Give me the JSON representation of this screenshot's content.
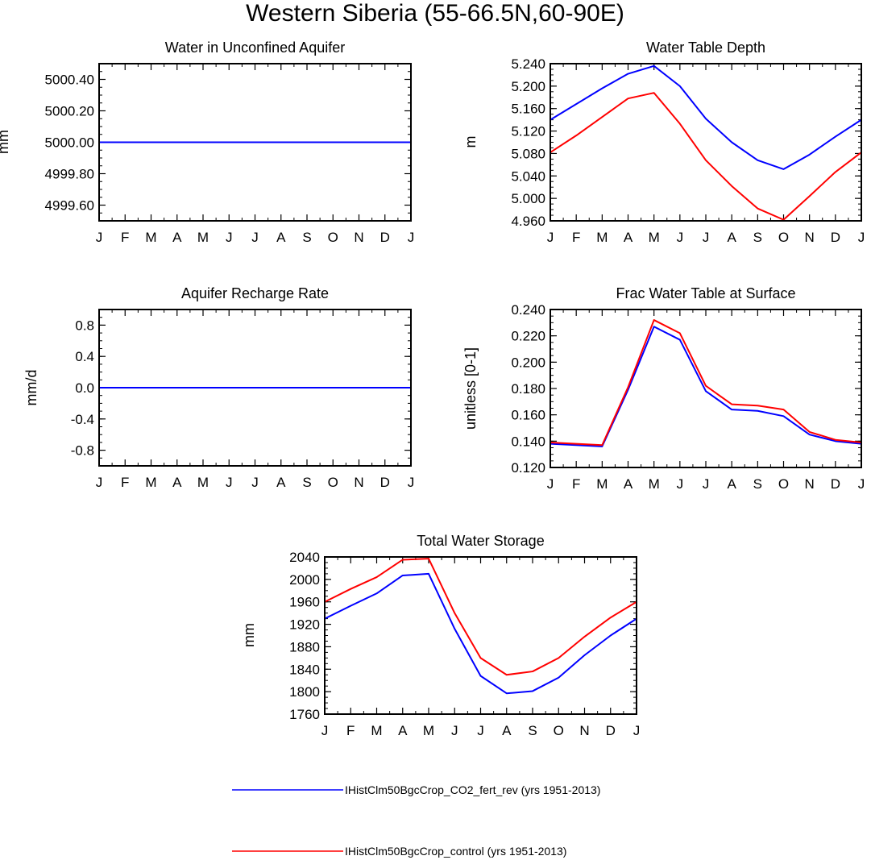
{
  "figure": {
    "title": "Western Siberia (55-66.5N,60-90E)",
    "month_labels": [
      "J",
      "F",
      "M",
      "A",
      "M",
      "J",
      "J",
      "A",
      "S",
      "O",
      "N",
      "D",
      "J"
    ],
    "legend": [
      {
        "label": "IHistClm50BgcCrop_CO2_fert_rev (yrs 1951-2013)",
        "color": "#0000ff"
      },
      {
        "label": "IHistClm50BgcCrop_control (yrs 1951-2013)",
        "color": "#ff0000"
      }
    ]
  },
  "colors": {
    "series_a": "#0000ff",
    "series_b": "#ff0000",
    "axis": "#000000"
  },
  "chart_data": [
    {
      "id": "aquifer",
      "type": "line",
      "title": "Water in Unconfined Aquifer",
      "ylabel": "mm",
      "categories": [
        "J",
        "F",
        "M",
        "A",
        "M",
        "J",
        "J",
        "A",
        "S",
        "O",
        "N",
        "D",
        "J"
      ],
      "ylim": [
        4999.5,
        5000.5
      ],
      "yticks": [
        4999.6,
        4999.8,
        5000.0,
        5000.2,
        5000.4
      ],
      "ytick_labels": [
        "4999.60",
        "4999.80",
        "5000.00",
        "5000.20",
        "5000.40"
      ],
      "series": [
        {
          "values": [
            5000,
            5000,
            5000,
            5000,
            5000,
            5000,
            5000,
            5000,
            5000,
            5000,
            5000,
            5000,
            5000
          ]
        },
        {
          "values": [
            5000,
            5000,
            5000,
            5000,
            5000,
            5000,
            5000,
            5000,
            5000,
            5000,
            5000,
            5000,
            5000
          ]
        }
      ]
    },
    {
      "id": "wtd",
      "type": "line",
      "title": "Water Table Depth",
      "ylabel": "m",
      "categories": [
        "J",
        "F",
        "M",
        "A",
        "M",
        "J",
        "J",
        "A",
        "S",
        "O",
        "N",
        "D",
        "J"
      ],
      "ylim": [
        4.96,
        5.24
      ],
      "yticks": [
        4.96,
        5.0,
        5.04,
        5.08,
        5.12,
        5.16,
        5.2,
        5.24
      ],
      "ytick_labels": [
        "4.960",
        "5.000",
        "5.040",
        "5.080",
        "5.120",
        "5.160",
        "5.200",
        "5.240"
      ],
      "series": [
        {
          "values": [
            5.14,
            5.168,
            5.196,
            5.222,
            5.236,
            5.2,
            5.142,
            5.1,
            5.068,
            5.052,
            5.078,
            5.11,
            5.14
          ]
        },
        {
          "values": [
            5.082,
            5.112,
            5.145,
            5.178,
            5.188,
            5.133,
            5.068,
            5.022,
            4.982,
            4.962,
            5.004,
            5.047,
            5.082
          ]
        }
      ]
    },
    {
      "id": "recharge",
      "type": "line",
      "title": "Aquifer Recharge Rate",
      "ylabel": "mm/d",
      "categories": [
        "J",
        "F",
        "M",
        "A",
        "M",
        "J",
        "J",
        "A",
        "S",
        "O",
        "N",
        "D",
        "J"
      ],
      "ylim": [
        -1.0,
        1.0
      ],
      "yticks": [
        -0.8,
        -0.4,
        0.0,
        0.4,
        0.8
      ],
      "ytick_labels": [
        "-0.8",
        "-0.4",
        "0.0",
        "0.4",
        "0.8"
      ],
      "series": [
        {
          "values": [
            0,
            0,
            0,
            0,
            0,
            0,
            0,
            0,
            0,
            0,
            0,
            0,
            0
          ]
        },
        {
          "values": [
            0,
            0,
            0,
            0,
            0,
            0,
            0,
            0,
            0,
            0,
            0,
            0,
            0
          ]
        }
      ]
    },
    {
      "id": "frac",
      "type": "line",
      "title": "Frac Water Table at Surface",
      "ylabel": "unitless [0-1]",
      "categories": [
        "J",
        "F",
        "M",
        "A",
        "M",
        "J",
        "J",
        "A",
        "S",
        "O",
        "N",
        "D",
        "J"
      ],
      "ylim": [
        0.12,
        0.24
      ],
      "yticks": [
        0.12,
        0.14,
        0.16,
        0.18,
        0.2,
        0.22,
        0.24
      ],
      "ytick_labels": [
        "0.120",
        "0.140",
        "0.160",
        "0.180",
        "0.200",
        "0.220",
        "0.240"
      ],
      "series": [
        {
          "values": [
            0.138,
            0.137,
            0.136,
            0.179,
            0.227,
            0.217,
            0.178,
            0.164,
            0.163,
            0.159,
            0.145,
            0.14,
            0.138
          ]
        },
        {
          "values": [
            0.139,
            0.138,
            0.137,
            0.181,
            0.232,
            0.222,
            0.182,
            0.168,
            0.167,
            0.164,
            0.147,
            0.141,
            0.139
          ]
        }
      ]
    },
    {
      "id": "tws",
      "type": "line",
      "title": "Total Water Storage",
      "ylabel": "mm",
      "categories": [
        "J",
        "F",
        "M",
        "A",
        "M",
        "J",
        "J",
        "A",
        "S",
        "O",
        "N",
        "D",
        "J"
      ],
      "ylim": [
        1760,
        2040
      ],
      "yticks": [
        1760,
        1800,
        1840,
        1880,
        1920,
        1960,
        2000,
        2040
      ],
      "ytick_labels": [
        "1760",
        "1800",
        "1840",
        "1880",
        "1920",
        "1960",
        "2000",
        "2040"
      ],
      "series": [
        {
          "values": [
            1930,
            1953,
            1975,
            2007,
            2010,
            1912,
            1828,
            1797,
            1801,
            1825,
            1865,
            1900,
            1930
          ]
        },
        {
          "values": [
            1960,
            1983,
            2004,
            2035,
            2037,
            1940,
            1860,
            1830,
            1836,
            1860,
            1898,
            1932,
            1960
          ]
        }
      ]
    }
  ]
}
